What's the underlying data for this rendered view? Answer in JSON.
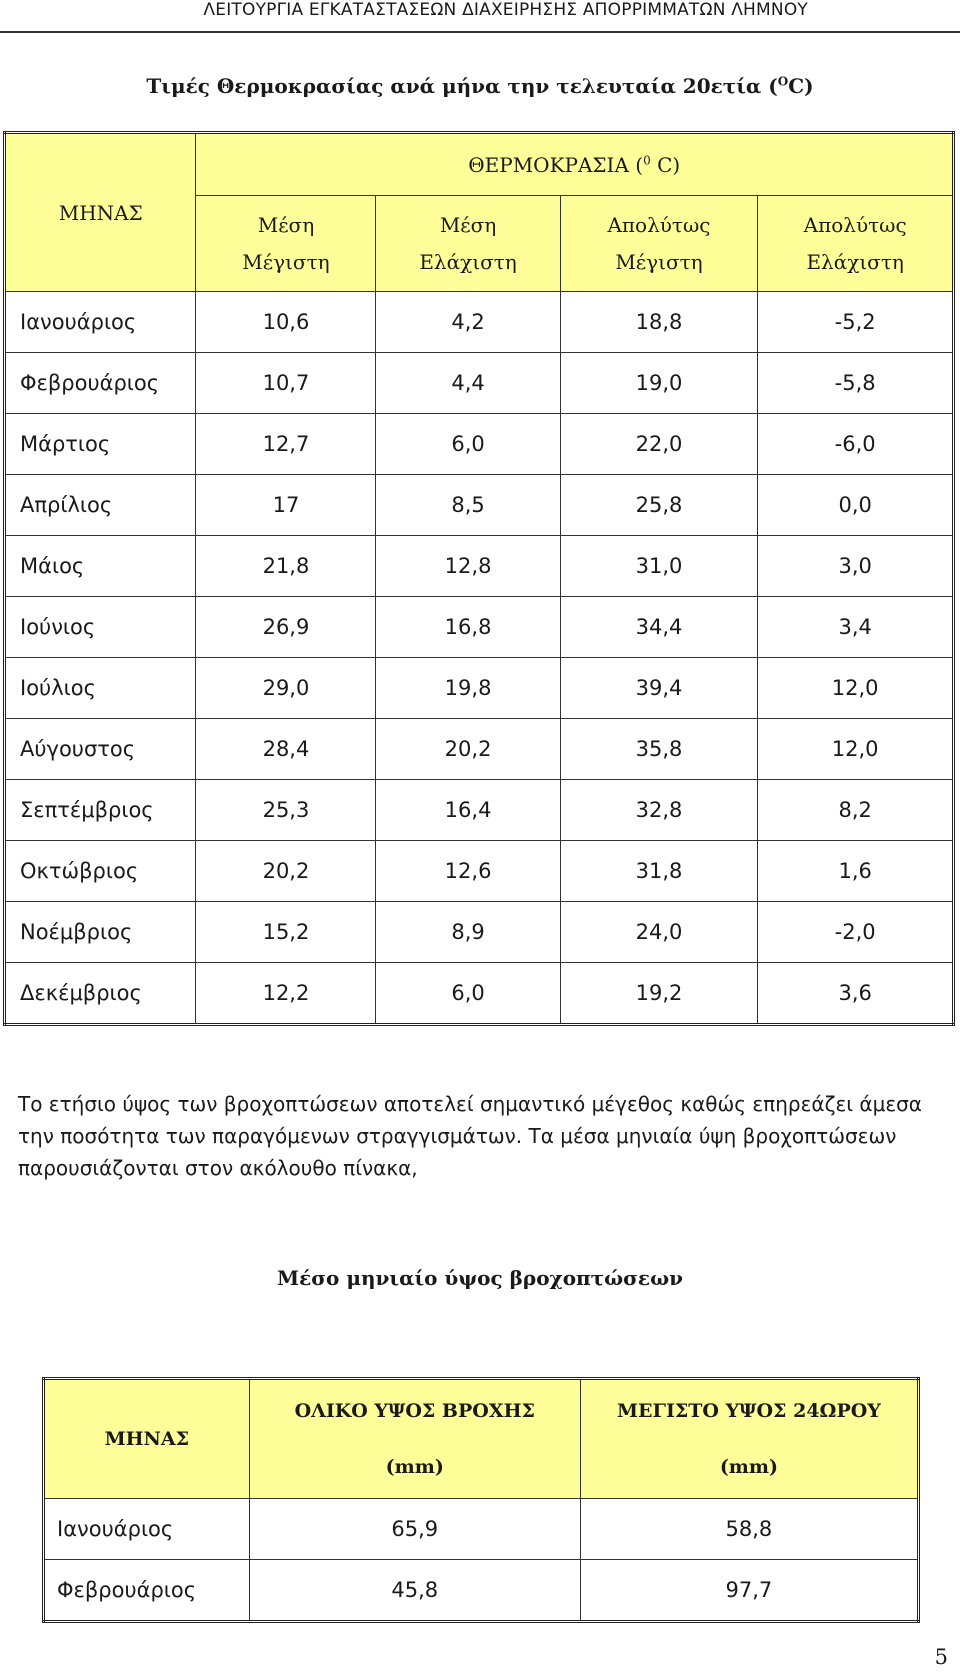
{
  "running_header": "ΛΕΙΤΟΥΡΓΙΑ ΕΓΚΑΤΑΣΤΑΣΕΩΝ ΔΙΑΧΕΙΡΗΣΗΣ ΑΠΟΡΡΙΜΜΑΤΩΝ ΛΗΜΝΟΥ",
  "temperature_section": {
    "title_main": "Τιμές Θερμοκρασίας ανά μήνα την τελευταία 20ετία (",
    "title_sup": "Ο",
    "title_end": "C)",
    "header": {
      "month": "ΜΗΝΑΣ",
      "group_main": "ΘΕΡΜΟΚΡΑΣΙΑ (",
      "group_sup": "0",
      "group_end": " C)",
      "col1_line1": "Μέση",
      "col1_line2": "Μέγιστη",
      "col2_line1": "Μέση",
      "col2_line2": "Ελάχιστη",
      "col3_line1": "Απολύτως",
      "col3_line2": "Μέγιστη",
      "col4_line1": "Απολύτως",
      "col4_line2": "Ελάχιστη"
    },
    "rows": [
      {
        "month": "Ιανουάριος",
        "mean_max": "10,6",
        "mean_min": "4,2",
        "abs_max": "18,8",
        "abs_min": "-5,2"
      },
      {
        "month": "Φεβρουάριος",
        "mean_max": "10,7",
        "mean_min": "4,4",
        "abs_max": "19,0",
        "abs_min": "-5,8"
      },
      {
        "month": "Μάρτιος",
        "mean_max": "12,7",
        "mean_min": "6,0",
        "abs_max": "22,0",
        "abs_min": "-6,0"
      },
      {
        "month": "Απρίλιος",
        "mean_max": "17",
        "mean_min": "8,5",
        "abs_max": "25,8",
        "abs_min": "0,0"
      },
      {
        "month": "Μάιος",
        "mean_max": "21,8",
        "mean_min": "12,8",
        "abs_max": "31,0",
        "abs_min": "3,0"
      },
      {
        "month": "Ιούνιος",
        "mean_max": "26,9",
        "mean_min": "16,8",
        "abs_max": "34,4",
        "abs_min": "3,4"
      },
      {
        "month": "Ιούλιος",
        "mean_max": "29,0",
        "mean_min": "19,8",
        "abs_max": "39,4",
        "abs_min": "12,0"
      },
      {
        "month": "Αύγουστος",
        "mean_max": "28,4",
        "mean_min": "20,2",
        "abs_max": "35,8",
        "abs_min": "12,0"
      },
      {
        "month": "Σεπτέμβριος",
        "mean_max": "25,3",
        "mean_min": "16,4",
        "abs_max": "32,8",
        "abs_min": "8,2"
      },
      {
        "month": "Οκτώβριος",
        "mean_max": "20,2",
        "mean_min": "12,6",
        "abs_max": "31,8",
        "abs_min": "1,6"
      },
      {
        "month": "Νοέμβριος",
        "mean_max": "15,2",
        "mean_min": "8,9",
        "abs_max": "24,0",
        "abs_min": "-2,0"
      },
      {
        "month": "Δεκέμβριος",
        "mean_max": "12,2",
        "mean_min": "6,0",
        "abs_max": "19,2",
        "abs_min": "3,6"
      }
    ]
  },
  "paragraph": "Το ετήσιο ύψος των βροχοπτώσεων αποτελεί σημαντικό μέγεθος καθώς επηρεάζει άμεσα την ποσότητα των παραγόμενων στραγγισμάτων. Τα μέσα μηνιαία ύψη βροχοπτώσεων παρουσιάζονται στον ακόλουθο πίνακα,",
  "rain_section": {
    "title": "Μέσο μηνιαίο ύψος βροχοπτώσεων",
    "header": {
      "month": "ΜΗΝΑΣ",
      "total_line1": "ΟΛΙΚΟ ΥΨΟΣ ΒΡΟΧΗΣ",
      "total_line2": "(mm)",
      "max24_line1": "ΜΕΓΙΣΤΟ ΥΨΟΣ 24ΩΡΟΥ",
      "max24_line2": "(mm)"
    },
    "rows": [
      {
        "month": "Ιανουάριος",
        "total": "65,9",
        "max24": "58,8"
      },
      {
        "month": "Φεβρουάριος",
        "total": "45,8",
        "max24": "97,7"
      }
    ]
  },
  "page_number": "5"
}
